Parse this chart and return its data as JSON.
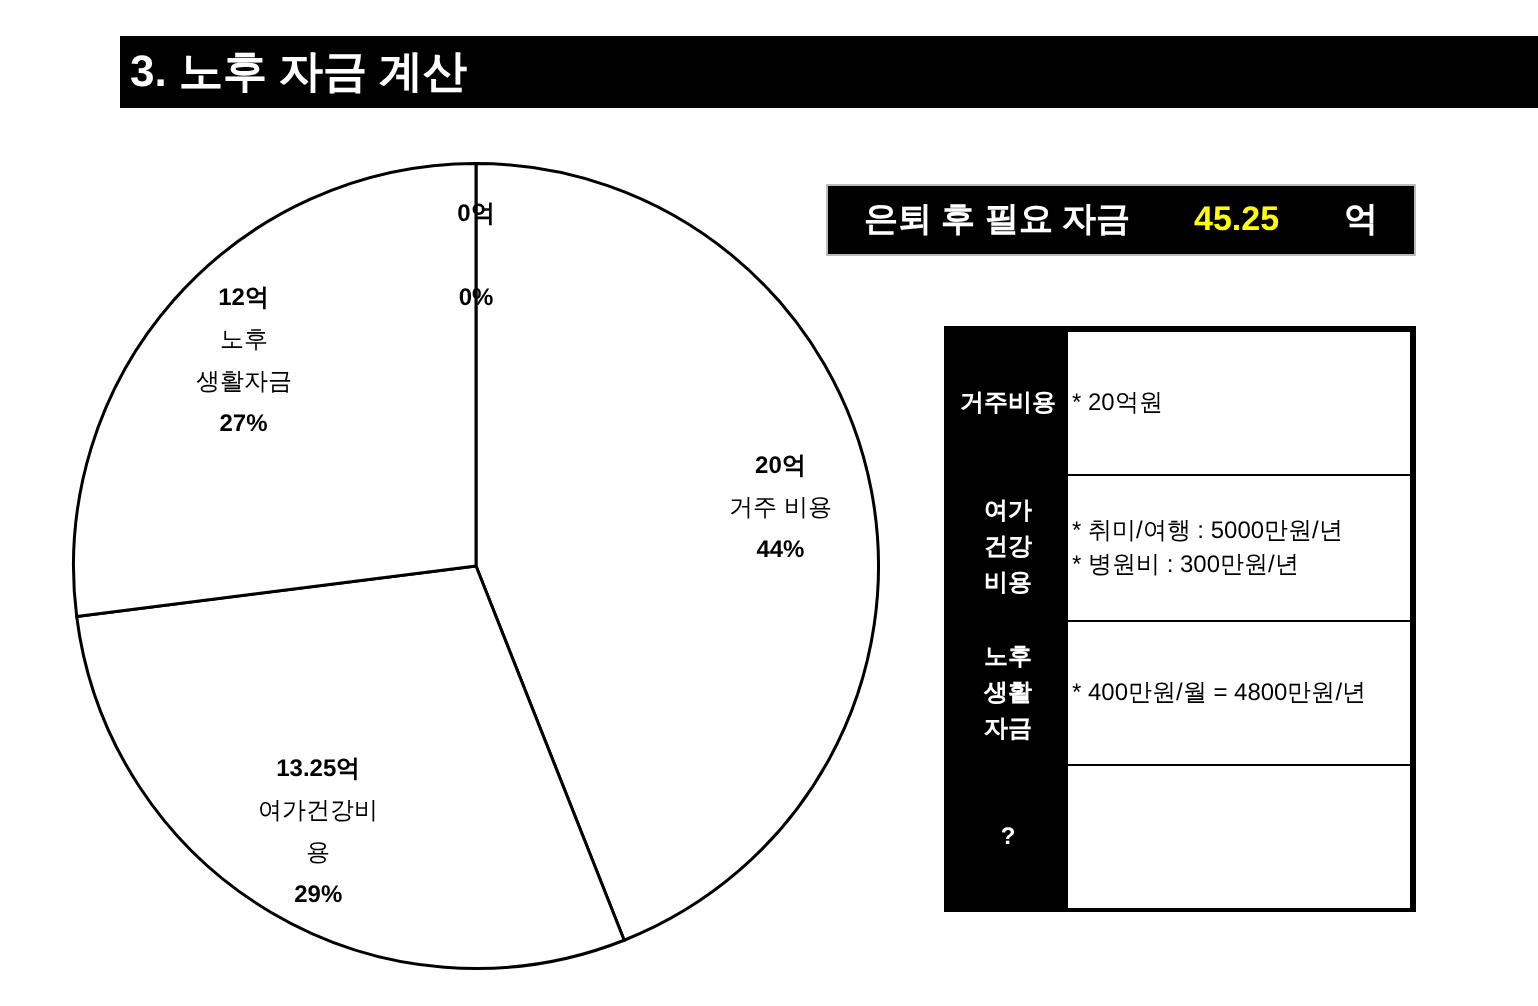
{
  "chart_data": [
    {
      "type": "pie",
      "title": "3. 노후 자금 계산",
      "categories": [
        "거주 비용",
        "여가건강비용",
        "노후 생활자금",
        null
      ],
      "values": [
        44,
        29,
        27,
        0
      ],
      "colors": [
        "#ffffff",
        "#ffffff",
        "#ffffff",
        "#ffffff"
      ],
      "value_labels": [
        "20억\n44%",
        "13.25억\n29%",
        "12억\n27%",
        "0억\n0%"
      ]
    },
    {
      "type": "other",
      "title": "은퇴 후 필요 자금",
      "annotations": [
        "45.25",
        "억",
        "* 20억원",
        "* 취미/여행 : 5000만원/년\n* 병원비 : 300만원/년",
        "* 400만원/월 = 4800만원/년"
      ],
      "categories": [
        "거주비용",
        "여가\n건강\n비용",
        "노후\n생활\n자금",
        "?"
      ]
    }
  ]
}
